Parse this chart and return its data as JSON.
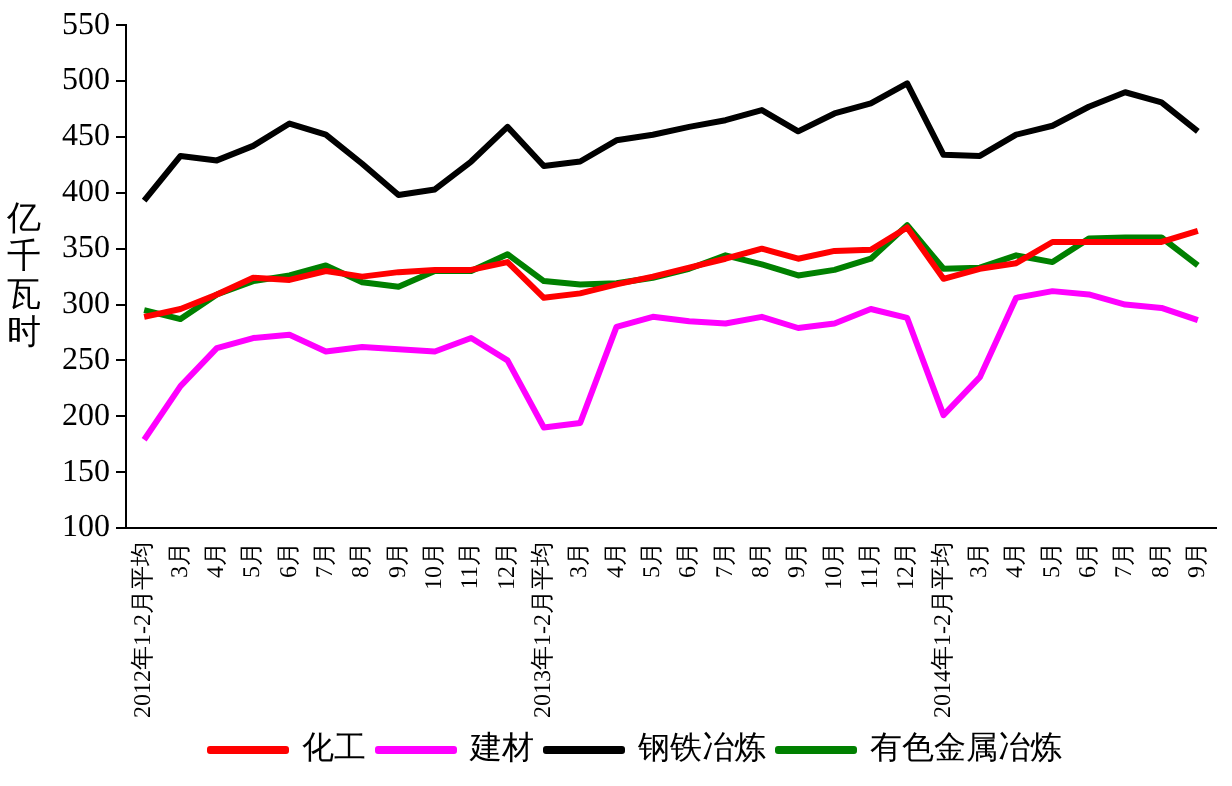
{
  "chart_data": {
    "type": "line",
    "ylabel": "亿千瓦时",
    "categories": [
      "2012年1-2月平均",
      "3月",
      "4月",
      "5月",
      "6月",
      "7月",
      "8月",
      "9月",
      "10月",
      "11月",
      "12月",
      "2013年1-2月平均",
      "3月",
      "4月",
      "5月",
      "6月",
      "7月",
      "8月",
      "9月",
      "10月",
      "11月",
      "12月",
      "2014年1-2月平均",
      "3月",
      "4月",
      "5月",
      "6月",
      "7月",
      "8月",
      "9月"
    ],
    "series": [
      {
        "name": "化工",
        "color": "#ff0000",
        "values": [
          289,
          296,
          309,
          324,
          322,
          330,
          325,
          329,
          331,
          331,
          338,
          306,
          310,
          318,
          325,
          333,
          341,
          350,
          341,
          348,
          349,
          369,
          323,
          332,
          337,
          356,
          356,
          356,
          356,
          366
        ]
      },
      {
        "name": "建材",
        "color": "#ff00ff",
        "values": [
          179,
          227,
          261,
          270,
          273,
          258,
          262,
          260,
          258,
          270,
          250,
          190,
          194,
          280,
          289,
          285,
          283,
          289,
          279,
          283,
          296,
          288,
          201,
          235,
          306,
          312,
          309,
          300,
          297,
          286
        ]
      },
      {
        "name": "钢铁冶炼",
        "color": "#000000",
        "values": [
          393,
          433,
          429,
          442,
          462,
          452,
          426,
          398,
          403,
          428,
          459,
          424,
          428,
          447,
          452,
          459,
          465,
          474,
          455,
          471,
          480,
          498,
          434,
          433,
          452,
          460,
          477,
          490,
          481,
          455
        ]
      },
      {
        "name": "有色金属冶炼",
        "color": "#008000",
        "values": [
          295,
          287,
          309,
          321,
          326,
          335,
          320,
          316,
          330,
          330,
          345,
          321,
          318,
          319,
          324,
          332,
          344,
          336,
          326,
          331,
          341,
          371,
          332,
          333,
          344,
          338,
          359,
          360,
          360,
          335
        ]
      }
    ],
    "ylim": [
      100,
      550
    ],
    "yticks": [
      100,
      150,
      200,
      250,
      300,
      350,
      400,
      450,
      500,
      550
    ],
    "grid": false,
    "legend": "bottom",
    "marker": "none",
    "line_style": "solid"
  }
}
